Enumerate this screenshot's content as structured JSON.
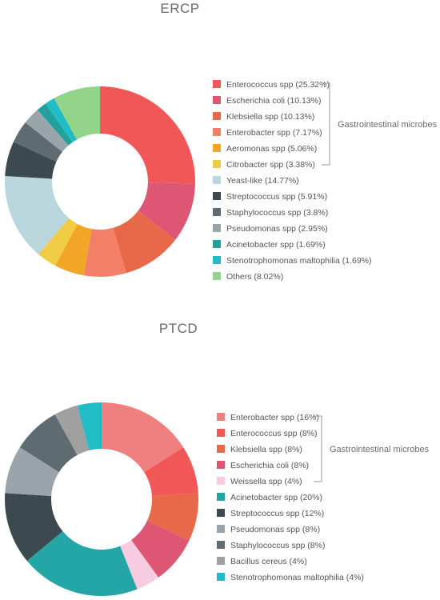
{
  "chart_data": [
    {
      "type": "pie",
      "style": "donut",
      "title": "ERCP",
      "legend_position": "right",
      "bracket_label": "Gastrointestinal microbes",
      "bracket_covers": 6,
      "slices": [
        {
          "label": "Enterococcus spp (25.32%)",
          "value": 25.32,
          "color": "#f25757"
        },
        {
          "label": "Escherichia coli (10.13%)",
          "value": 10.13,
          "color": "#dd5775"
        },
        {
          "label": "Klebsiella spp (10.13%)",
          "value": 10.13,
          "color": "#e8684a"
        },
        {
          "label": "Enterobacter spp (7.17%)",
          "value": 7.17,
          "color": "#f47f68"
        },
        {
          "label": "Aeromonas spp (5.06%)",
          "value": 5.06,
          "color": "#f2a627"
        },
        {
          "label": "Citrobacter spp (3.38%)",
          "value": 3.38,
          "color": "#f2cb44"
        },
        {
          "label": "Yeast-like (14.77%)",
          "value": 14.77,
          "color": "#b9d6dc"
        },
        {
          "label": "Streptococcus spp (5.91%)",
          "value": 5.91,
          "color": "#3c4a50"
        },
        {
          "label": "Staphylococcus spp (3.8%)",
          "value": 3.8,
          "color": "#5e6b71"
        },
        {
          "label": "Pseudomonas spp (2.95%)",
          "value": 2.95,
          "color": "#9aa5ab"
        },
        {
          "label": "Acinetobacter spp (1.69%)",
          "value": 1.69,
          "color": "#22a09c"
        },
        {
          "label": "Stenotrophomonas maltophilia (1.69%)",
          "value": 1.69,
          "color": "#22bcc6"
        },
        {
          "label": "Others (8.02%)",
          "value": 8.02,
          "color": "#92d58a"
        }
      ]
    },
    {
      "type": "pie",
      "style": "donut",
      "title": "PTCD",
      "legend_position": "right",
      "bracket_label": "Gastrointestinal microbes",
      "bracket_covers": 5,
      "slices": [
        {
          "label": "Enterobacter spp (16%)",
          "value": 16,
          "color": "#f08080"
        },
        {
          "label": "Enterococcus spp (8%)",
          "value": 8,
          "color": "#f25757"
        },
        {
          "label": "Klebsiella spp (8%)",
          "value": 8,
          "color": "#e8684a"
        },
        {
          "label": "Escherichia coli (8%)",
          "value": 8,
          "color": "#dd5775"
        },
        {
          "label": "Weissella spp (4%)",
          "value": 4,
          "color": "#f8cce0"
        },
        {
          "label": "Acinetobacter spp (20%)",
          "value": 20,
          "color": "#24a6a6"
        },
        {
          "label": "Streptococcus spp (12%)",
          "value": 12,
          "color": "#3c4a50"
        },
        {
          "label": "Pseudomonas spp (8%)",
          "value": 8,
          "color": "#9aa5ab"
        },
        {
          "label": "Staphylococcus spp (8%)",
          "value": 8,
          "color": "#5e6b71"
        },
        {
          "label": "Bacillus cereus (4%)",
          "value": 4,
          "color": "#a0a0a0"
        },
        {
          "label": "Stenotrophomonas maltophilia (4%)",
          "value": 4,
          "color": "#22bcc6"
        }
      ]
    }
  ]
}
